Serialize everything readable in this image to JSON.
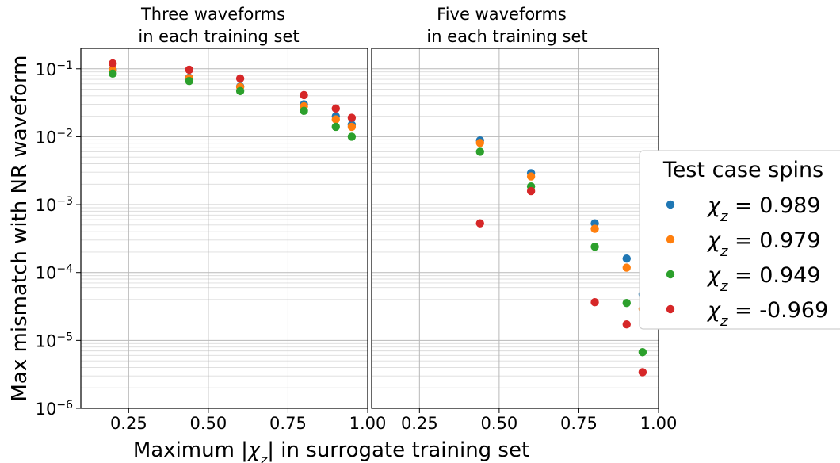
{
  "chart_data": [
    {
      "type": "scatter",
      "title": "Three waveforms\nin each training set",
      "ylabel": "Max mismatch with NR waveform",
      "yscale": "log",
      "ylim": [
        1e-06,
        0.2
      ],
      "xlim": [
        0.1,
        1.0
      ],
      "xticks": [
        "0.25",
        "0.50",
        "0.75",
        "1.00"
      ],
      "yticks": [
        "10^-6",
        "10^-5",
        "10^-4",
        "10^-3",
        "10^-2",
        "10^-1"
      ],
      "grid": true,
      "x": [
        0.2,
        0.44,
        0.6,
        0.8,
        0.9,
        0.95
      ],
      "series": [
        {
          "name": "χz = 0.989",
          "values": [
            0.097,
            0.074,
            0.055,
            0.03,
            0.02,
            0.015
          ]
        },
        {
          "name": "χz = 0.979",
          "values": [
            0.095,
            0.073,
            0.054,
            0.028,
            0.018,
            0.014
          ]
        },
        {
          "name": "χz = 0.949",
          "values": [
            0.085,
            0.066,
            0.047,
            0.024,
            0.014,
            0.01
          ]
        },
        {
          "name": "χz = -0.969",
          "values": [
            0.12,
            0.097,
            0.072,
            0.041,
            0.026,
            0.019
          ]
        }
      ]
    },
    {
      "type": "scatter",
      "title": "Five waveforms\nin each training set",
      "yscale": "log",
      "ylim": [
        1e-06,
        0.2
      ],
      "xlim": [
        0.1,
        1.0
      ],
      "xticks": [
        "0.25",
        "0.50",
        "0.75",
        "1.00"
      ],
      "grid": true,
      "x": [
        0.44,
        0.6,
        0.8,
        0.9,
        0.95
      ],
      "series": [
        {
          "name": "χz = 0.989",
          "values": [
            0.0088,
            0.0029,
            0.00053,
            0.00016,
            4.8e-05
          ]
        },
        {
          "name": "χz = 0.979",
          "values": [
            0.0081,
            0.0026,
            0.00044,
            0.000118,
            2.9e-05
          ]
        },
        {
          "name": "χz = 0.949",
          "values": [
            0.006,
            0.00185,
            0.00024,
            3.55e-05,
            6.7e-06
          ]
        },
        {
          "name": "χz = -0.969",
          "values": [
            0.00053,
            0.00158,
            3.65e-05,
            1.72e-05,
            3.4e-06
          ]
        }
      ]
    }
  ],
  "xlabel": {
    "pre": "Maximum |",
    "chi": "χ",
    "sub": "z",
    "post": "| in surrogate training set"
  },
  "legend": {
    "title": "Test case spins",
    "placement": "right",
    "entries": [
      {
        "value": "0.989",
        "color": "#1f77b4"
      },
      {
        "value": "0.979",
        "color": "#ff7f0e"
      },
      {
        "value": "0.949",
        "color": "#2ca02c"
      },
      {
        "value": "-0.969",
        "color": "#d62728"
      }
    ]
  },
  "colors": [
    "#1f77b4",
    "#ff7f0e",
    "#2ca02c",
    "#d62728"
  ],
  "x_tick_labels": [
    "0.25",
    "0.50",
    "0.75",
    "1.00"
  ],
  "y_tick_exponents": [
    "-6",
    "-5",
    "-4",
    "-3",
    "-2",
    "-1"
  ]
}
